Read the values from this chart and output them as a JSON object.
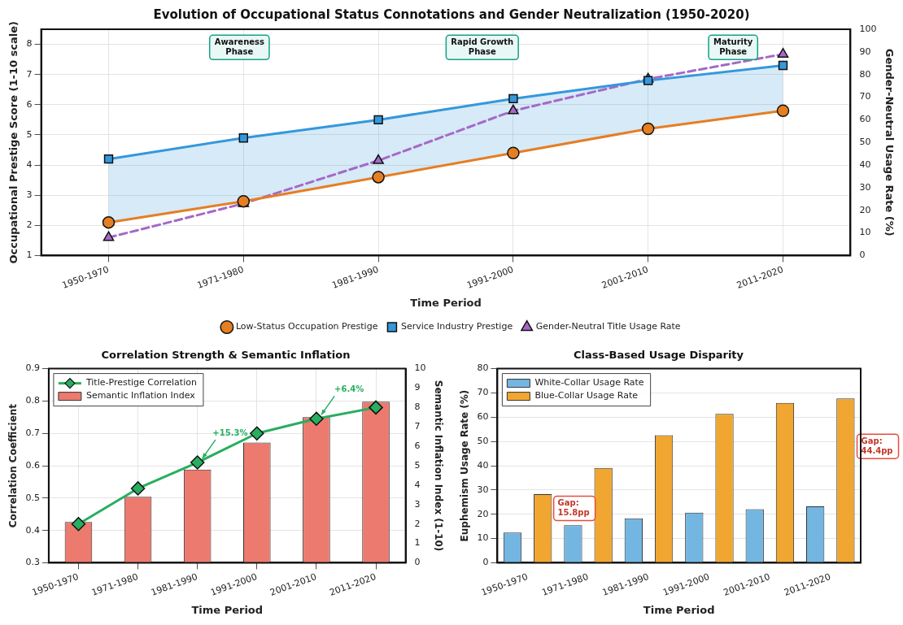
{
  "chart_data": [
    {
      "type": "line",
      "title": "Evolution of Occupational Status Connotations and Gender Neutralization (1950-2020)",
      "xlabel": "Time Period",
      "ylabel": "Occupational Prestige Score (1-10 scale)",
      "y2label": "Gender-Neutral Usage Rate (%)",
      "categories": [
        "1950-1970",
        "1971-1980",
        "1981-1990",
        "1991-2000",
        "2001-2010",
        "2011-2020"
      ],
      "series": [
        {
          "name": "Low-Status Occupation Prestige",
          "color": "#e67e22",
          "marker": "circle",
          "values": [
            2.1,
            2.8,
            3.6,
            4.4,
            5.2,
            5.8
          ]
        },
        {
          "name": "Service Industry Prestige",
          "color": "#3498db",
          "marker": "square",
          "values": [
            4.2,
            4.9,
            5.5,
            6.2,
            6.8,
            7.3
          ],
          "lower": [
            2.1,
            2.8,
            3.6,
            4.4,
            5.2,
            5.8
          ],
          "upper": [
            4.2,
            4.9,
            5.5,
            6.2,
            6.8,
            7.3
          ]
        },
        {
          "name": "Gender-Neutral Title Usage Rate",
          "color": "#a569c6",
          "marker": "triangle",
          "line_style": "dashed",
          "axis": "y2",
          "values": [
            8,
            23,
            42,
            64,
            78,
            89
          ]
        }
      ],
      "ylim": [
        1,
        8.5
      ],
      "yticks": [
        1,
        2,
        3,
        4,
        5,
        6,
        7,
        8
      ],
      "y2lim": [
        0,
        100
      ],
      "y2ticks": [
        0,
        10,
        20,
        30,
        40,
        50,
        60,
        70,
        80,
        90,
        100
      ],
      "annotations": [
        "Awareness\nPhase",
        "Rapid Growth\nPhase",
        "Maturity\nPhase"
      ],
      "grid": true,
      "legend": "bottom"
    },
    {
      "type": "bar",
      "title": "Correlation Strength & Semantic Inflation",
      "xlabel": "Time Period",
      "ylabel": "Correlation Coefficient",
      "y2label": "Semantic Inflation Index (1-10)",
      "categories": [
        "1950-1970",
        "1971-1980",
        "1981-1990",
        "1991-2000",
        "2001-2010",
        "2011-2020"
      ],
      "series": [
        {
          "name": "Title-Prestige Correlation",
          "type": "line",
          "color": "#27ae60",
          "marker": "diamond",
          "values": [
            0.42,
            0.53,
            0.61,
            0.7,
            0.745,
            0.78
          ]
        },
        {
          "name": "Semantic Inflation Index",
          "type": "bar",
          "color": "#ec7a6e",
          "axis": "y2",
          "values": [
            2.1,
            3.4,
            4.8,
            6.2,
            7.5,
            8.3
          ]
        }
      ],
      "ylim": [
        0.3,
        0.9
      ],
      "yticks": [
        0.3,
        0.4,
        0.5,
        0.6,
        0.7,
        0.8,
        0.9
      ],
      "y2lim": [
        0,
        10
      ],
      "y2ticks": [
        0,
        1,
        2,
        3,
        4,
        5,
        6,
        7,
        8,
        9,
        10
      ],
      "annotations": [
        {
          "text": "+15.3%",
          "x": "1981-1990",
          "y": 0.61
        },
        {
          "text": "+6.4%",
          "x": "2001-2010",
          "y": 0.745
        }
      ],
      "grid": true,
      "legend": "top left"
    },
    {
      "type": "bar",
      "title": "Class-Based Usage Disparity",
      "xlabel": "Time Period",
      "ylabel": "Euphemism Usage Rate (%)",
      "categories": [
        "1950-1970",
        "1971-1980",
        "1981-1990",
        "1991-2000",
        "2001-2010",
        "2011-2020"
      ],
      "series": [
        {
          "name": "White-Collar Usage Rate",
          "color": "#74b6e2",
          "values": [
            12.5,
            15.5,
            18.3,
            20.7,
            22.1,
            23.3
          ]
        },
        {
          "name": "Blue-Collar Usage Rate",
          "color": "#f0a630",
          "values": [
            28.3,
            39.1,
            52.6,
            61.4,
            65.9,
            67.7
          ]
        }
      ],
      "ylim": [
        0,
        80
      ],
      "yticks": [
        0,
        10,
        20,
        30,
        40,
        50,
        60,
        70,
        80
      ],
      "annotations": [
        "Gap:\n15.8pp",
        "Gap:\n44.4pp"
      ],
      "grid": "y",
      "legend": "top left"
    }
  ]
}
